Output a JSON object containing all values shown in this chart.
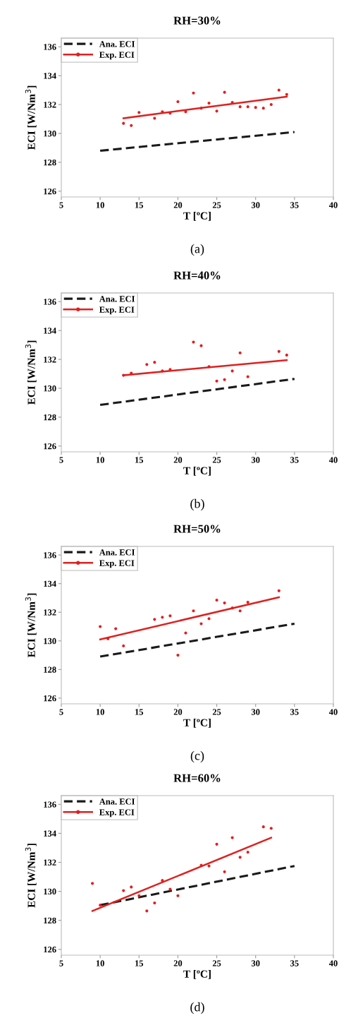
{
  "chart_data": [
    {
      "type": "line",
      "title": "RH=30%",
      "xlabel": "T [ºC]",
      "ylabel": "ECI [W/Nm$^{3}$]",
      "annotations": [
        "(a)"
      ],
      "xlim": [
        5,
        40
      ],
      "ylim": [
        125.6,
        136.6
      ],
      "xticks": [
        5,
        10,
        15,
        20,
        25,
        30,
        35,
        40
      ],
      "yticks": [
        126,
        128,
        130,
        132,
        134,
        136
      ],
      "legend": "top left",
      "grid": false,
      "series": [
        {
          "name": "Ana. ECI",
          "color": "#1a1a1a",
          "line_style": "dashed",
          "x": [
            10,
            35
          ],
          "values": [
            128.8,
            130.1
          ]
        },
        {
          "name": "Exp. ECI",
          "color": "#e02020",
          "line_style": "solid",
          "x": [
            13,
            34
          ],
          "values": [
            131.05,
            132.55
          ]
        },
        {
          "type": "scatter",
          "color": "#e02020",
          "marker": "circle",
          "x": [
            13,
            14,
            15,
            17,
            18,
            19,
            20,
            21,
            22,
            23,
            24,
            25,
            26,
            27,
            28,
            29,
            30,
            31,
            32,
            33,
            34
          ],
          "values": [
            130.7,
            130.55,
            131.45,
            131.05,
            131.5,
            131.4,
            132.2,
            131.5,
            132.8,
            131.75,
            132.1,
            131.55,
            132.85,
            132.15,
            131.85,
            131.85,
            131.8,
            131.75,
            132.0,
            133.0,
            132.7
          ]
        }
      ]
    },
    {
      "type": "line",
      "title": "RH=40%",
      "xlabel": "T [ºC]",
      "ylabel": "ECI [W/Nm$^{3}$]",
      "annotations": [
        "(b)"
      ],
      "xlim": [
        5,
        40
      ],
      "ylim": [
        125.6,
        136.6
      ],
      "xticks": [
        5,
        10,
        15,
        20,
        25,
        30,
        35,
        40
      ],
      "yticks": [
        126,
        128,
        130,
        132,
        134,
        136
      ],
      "legend": "top left",
      "grid": false,
      "series": [
        {
          "name": "Ana. ECI",
          "color": "#1a1a1a",
          "line_style": "dashed",
          "x": [
            10,
            35
          ],
          "values": [
            128.85,
            130.65
          ]
        },
        {
          "name": "Exp. ECI",
          "color": "#e02020",
          "line_style": "solid",
          "x": [
            13,
            34
          ],
          "values": [
            130.9,
            131.95
          ]
        },
        {
          "type": "scatter",
          "color": "#e02020",
          "marker": "circle",
          "x": [
            13,
            14,
            16,
            17,
            18,
            19,
            22,
            23,
            24,
            25,
            26,
            27,
            28,
            29,
            33,
            34
          ],
          "values": [
            130.9,
            131.05,
            131.65,
            131.8,
            131.2,
            131.3,
            133.2,
            132.95,
            131.5,
            130.5,
            130.6,
            131.2,
            132.45,
            130.8,
            132.55,
            132.3
          ]
        }
      ]
    },
    {
      "type": "line",
      "title": "RH=50%",
      "xlabel": "T [ºC]",
      "ylabel": "ECI [W/Nm$^{3}$]",
      "annotations": [
        "(c)"
      ],
      "xlim": [
        5,
        40
      ],
      "ylim": [
        125.6,
        136.6
      ],
      "xticks": [
        5,
        10,
        15,
        20,
        25,
        30,
        35,
        40
      ],
      "yticks": [
        126,
        128,
        130,
        132,
        134,
        136
      ],
      "legend": "top left",
      "grid": false,
      "series": [
        {
          "name": "Ana. ECI",
          "color": "#1a1a1a",
          "line_style": "dashed",
          "x": [
            10,
            35
          ],
          "values": [
            128.9,
            131.2
          ]
        },
        {
          "name": "Exp. ECI",
          "color": "#e02020",
          "line_style": "solid",
          "x": [
            10,
            33
          ],
          "values": [
            130.1,
            133.05
          ]
        },
        {
          "type": "scatter",
          "color": "#e02020",
          "marker": "circle",
          "x": [
            10,
            11,
            12,
            13,
            17,
            18,
            19,
            20,
            21,
            22,
            23,
            24,
            25,
            26,
            27,
            28,
            29,
            33
          ],
          "values": [
            131.0,
            130.15,
            130.85,
            129.65,
            131.5,
            131.65,
            131.75,
            129.0,
            130.55,
            132.1,
            131.2,
            131.55,
            132.85,
            132.65,
            132.3,
            132.1,
            132.7,
            133.5
          ]
        }
      ]
    },
    {
      "type": "line",
      "title": "RH=60%",
      "xlabel": "T [ºC]",
      "ylabel": "ECI [W/Nm$^{3}$]",
      "annotations": [
        "(d)"
      ],
      "xlim": [
        5,
        40
      ],
      "ylim": [
        125.6,
        136.6
      ],
      "xticks": [
        5,
        10,
        15,
        20,
        25,
        30,
        35,
        40
      ],
      "yticks": [
        126,
        128,
        130,
        132,
        134,
        136
      ],
      "legend": "top left",
      "grid": false,
      "series": [
        {
          "name": "Ana. ECI",
          "color": "#1a1a1a",
          "line_style": "dashed",
          "x": [
            10,
            35
          ],
          "values": [
            129.05,
            131.75
          ]
        },
        {
          "name": "Exp. ECI",
          "color": "#e02020",
          "line_style": "solid",
          "x": [
            9,
            32
          ],
          "values": [
            128.65,
            133.7
          ]
        },
        {
          "type": "scatter",
          "color": "#e02020",
          "marker": "circle",
          "x": [
            9,
            10,
            13,
            14,
            15,
            16,
            17,
            18,
            19,
            20,
            23,
            24,
            25,
            26,
            27,
            28,
            29,
            31,
            32
          ],
          "values": [
            130.55,
            129.05,
            130.05,
            130.3,
            129.7,
            128.65,
            129.2,
            130.75,
            130.15,
            129.7,
            131.8,
            131.75,
            133.25,
            131.35,
            133.7,
            132.35,
            132.7,
            134.45,
            134.35
          ]
        }
      ]
    }
  ]
}
